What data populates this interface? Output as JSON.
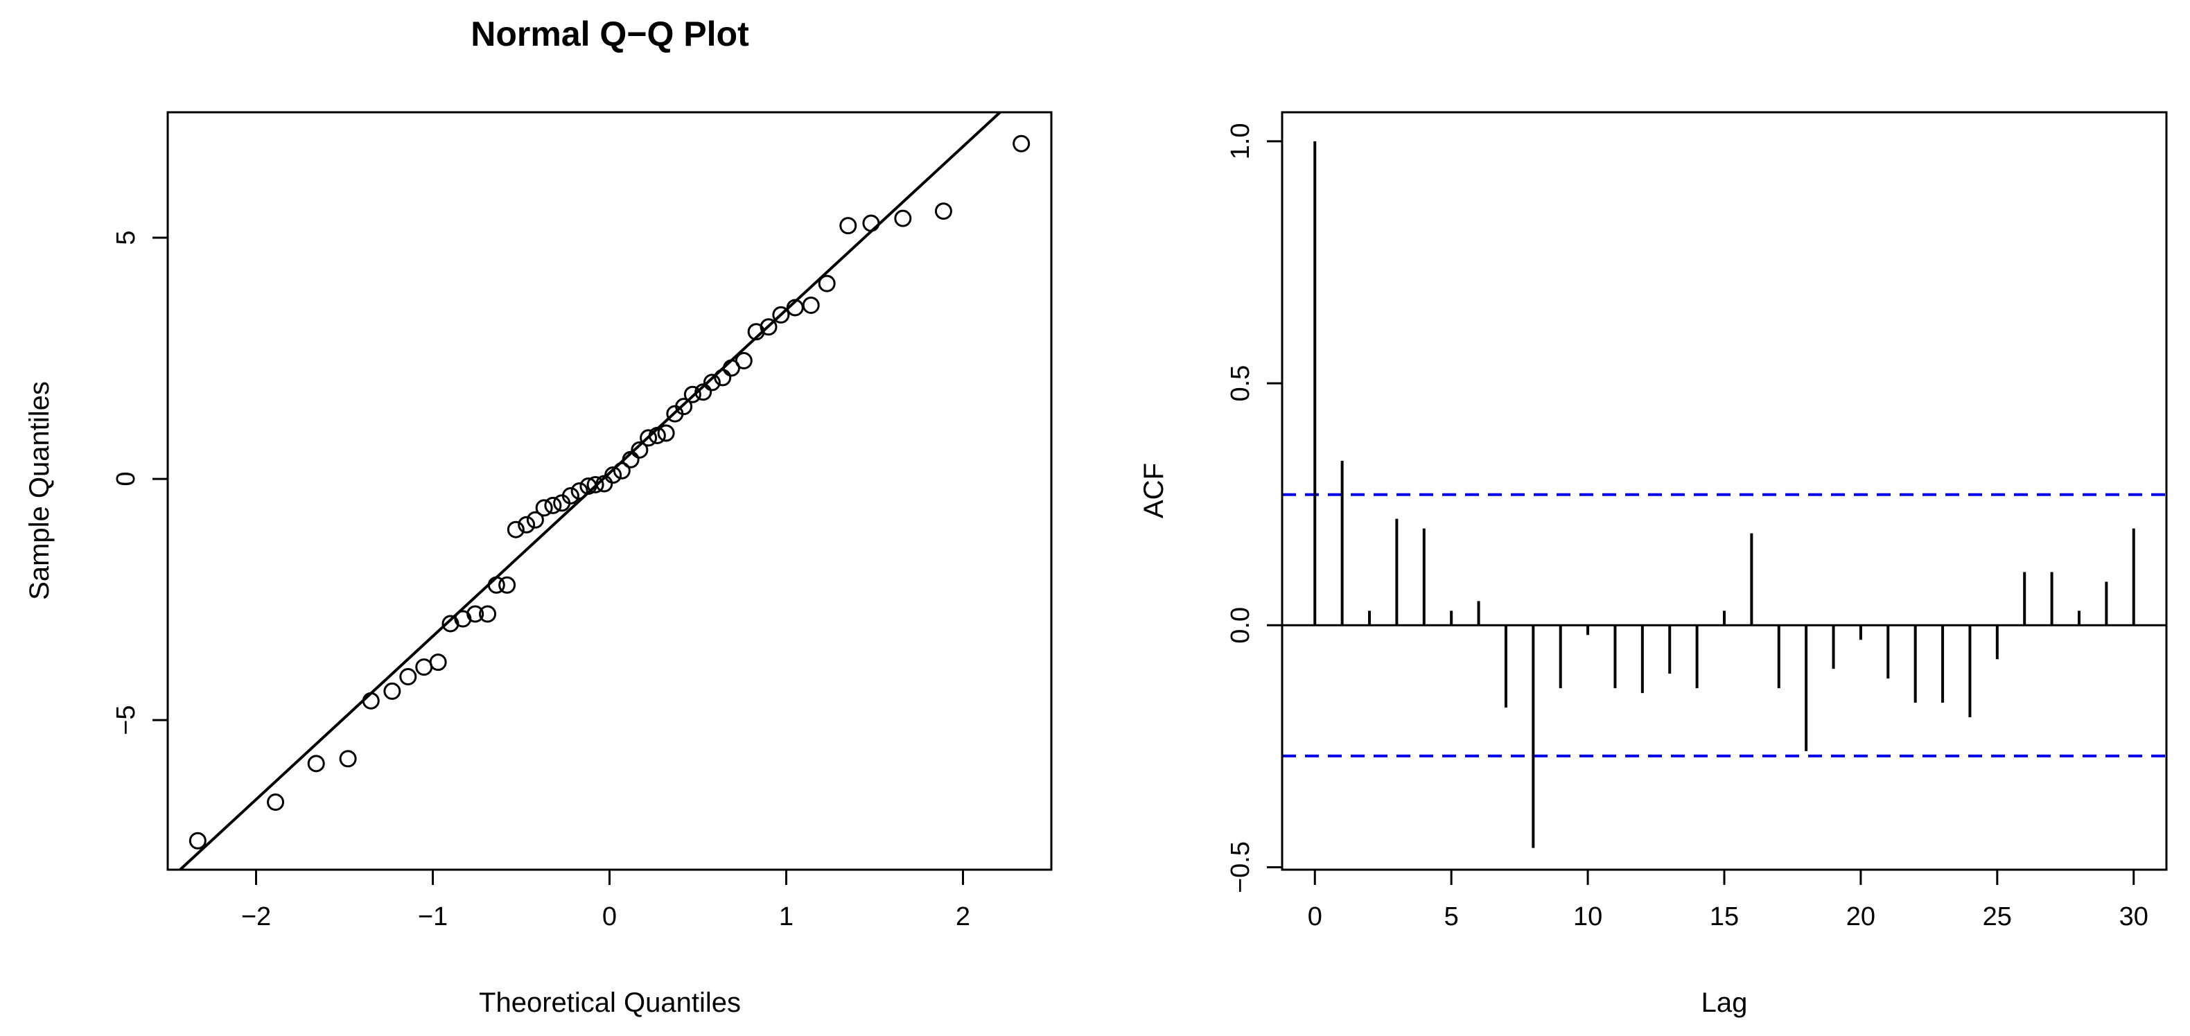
{
  "chart_data": [
    {
      "type": "scatter",
      "title": "Normal Q−Q Plot",
      "xlabel": "Theoretical Quantiles",
      "ylabel": "Sample Quantiles",
      "xlim": [
        -2.5,
        2.5
      ],
      "ylim": [
        -8.1,
        7.6
      ],
      "xticks": [
        -2,
        -1,
        0,
        1,
        2
      ],
      "xtick_labels": [
        "−2",
        "−1",
        "0",
        "1",
        "2"
      ],
      "yticks": [
        -5,
        0,
        5
      ],
      "ytick_labels": [
        "−5",
        "0",
        "5"
      ],
      "grid": false,
      "line_color": "#000000",
      "point_color": "#000000",
      "reference_line": [
        [
          -2.43,
          -8.1
        ],
        [
          2.21,
          7.6
        ]
      ],
      "points": [
        [
          -2.33,
          -7.5
        ],
        [
          -1.89,
          -6.7
        ],
        [
          -1.66,
          -5.9
        ],
        [
          -1.48,
          -5.8
        ],
        [
          -1.35,
          -4.6
        ],
        [
          -1.23,
          -4.4
        ],
        [
          -1.14,
          -4.1
        ],
        [
          -1.05,
          -3.9
        ],
        [
          -0.97,
          -3.8
        ],
        [
          -0.9,
          -3.0
        ],
        [
          -0.83,
          -2.9
        ],
        [
          -0.76,
          -2.8
        ],
        [
          -0.69,
          -2.8
        ],
        [
          -0.64,
          -2.2
        ],
        [
          -0.58,
          -2.2
        ],
        [
          -0.53,
          -1.05
        ],
        [
          -0.47,
          -0.95
        ],
        [
          -0.42,
          -0.85
        ],
        [
          -0.37,
          -0.6
        ],
        [
          -0.32,
          -0.55
        ],
        [
          -0.27,
          -0.5
        ],
        [
          -0.22,
          -0.35
        ],
        [
          -0.17,
          -0.25
        ],
        [
          -0.12,
          -0.15
        ],
        [
          -0.08,
          -0.12
        ],
        [
          -0.03,
          -0.1
        ],
        [
          0.02,
          0.08
        ],
        [
          0.07,
          0.17
        ],
        [
          0.12,
          0.4
        ],
        [
          0.17,
          0.6
        ],
        [
          0.22,
          0.85
        ],
        [
          0.27,
          0.9
        ],
        [
          0.32,
          0.95
        ],
        [
          0.37,
          1.35
        ],
        [
          0.42,
          1.5
        ],
        [
          0.47,
          1.75
        ],
        [
          0.53,
          1.8
        ],
        [
          0.58,
          2.0
        ],
        [
          0.64,
          2.1
        ],
        [
          0.69,
          2.3
        ],
        [
          0.76,
          2.45
        ],
        [
          0.83,
          3.05
        ],
        [
          0.9,
          3.15
        ],
        [
          0.97,
          3.4
        ],
        [
          1.05,
          3.55
        ],
        [
          1.14,
          3.6
        ],
        [
          1.23,
          4.05
        ],
        [
          1.35,
          5.25
        ],
        [
          1.48,
          5.3
        ],
        [
          1.66,
          5.4
        ],
        [
          1.89,
          5.55
        ],
        [
          2.33,
          6.95
        ]
      ]
    },
    {
      "type": "bar",
      "title": "",
      "xlabel": "Lag",
      "ylabel": "ACF",
      "xlim": [
        -1.2,
        31.2
      ],
      "ylim": [
        -0.505,
        1.06
      ],
      "xticks": [
        0,
        5,
        10,
        15,
        20,
        25,
        30
      ],
      "xtick_labels": [
        "0",
        "5",
        "10",
        "15",
        "20",
        "25",
        "30"
      ],
      "yticks": [
        -0.5,
        0,
        0.5,
        1
      ],
      "ytick_labels": [
        "−0.5",
        "0.0",
        "0.5",
        "1.0"
      ],
      "grid": false,
      "confidence_bounds": [
        0.27,
        -0.27
      ],
      "bound_color": "#0000ee",
      "bar_color": "#000000",
      "lags": [
        0,
        1,
        2,
        3,
        4,
        5,
        6,
        7,
        8,
        9,
        10,
        11,
        12,
        13,
        14,
        15,
        16,
        17,
        18,
        19,
        20,
        21,
        22,
        23,
        24,
        25,
        26,
        27,
        28,
        29,
        30
      ],
      "values": [
        1.0,
        0.34,
        0.03,
        0.22,
        0.2,
        0.03,
        0.05,
        -0.17,
        -0.46,
        -0.13,
        -0.02,
        -0.13,
        -0.14,
        -0.1,
        -0.13,
        0.03,
        0.19,
        -0.13,
        -0.26,
        -0.09,
        -0.03,
        -0.11,
        -0.16,
        -0.16,
        -0.19,
        -0.07,
        0.11,
        0.11,
        0.03,
        0.09,
        0.2
      ]
    }
  ]
}
